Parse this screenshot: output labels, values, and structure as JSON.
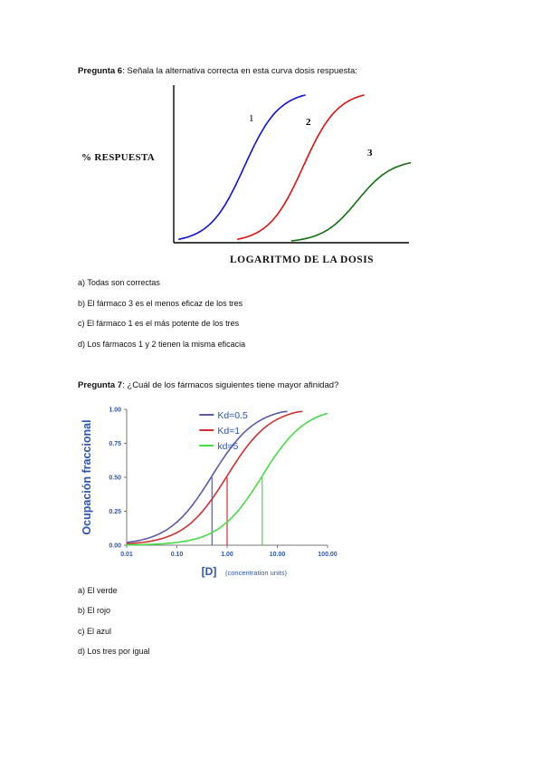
{
  "q6": {
    "label": "Pregunta 6",
    "text": ": Señala la alternativa correcta en esta curva dosis respuesta:",
    "options": [
      "a) Todas son correctas",
      "b) El fármaco 3 es el menos eficaz de los tres",
      "c) El fármaco 1 es el más potente de los tres",
      "d) Los fármacos 1 y 2 tienen la misma eficacia"
    ]
  },
  "q7": {
    "label": "Pregunta 7",
    "text": ": ¿Cuál de los fármacos siguientes tiene mayor afinidad?",
    "options": [
      "a) El verde",
      "b) El rojo",
      "c) El azul",
      "d) Los tres por igual"
    ]
  },
  "colors": {
    "blue": "#1010e0",
    "red": "#e01010",
    "green": "#107010",
    "kd_blue": "#5a5aa8",
    "kd_red": "#d03030",
    "kd_green": "#44dd44",
    "axis_blue": "#2b55b8"
  },
  "chart_data": [
    {
      "type": "line",
      "title": "",
      "xlabel": "LOGARITMO DE LA DOSIS",
      "ylabel": "% RESPUESTA",
      "series": [
        {
          "name": "1",
          "color": "#1010e0",
          "ec50": 3.0,
          "emax": 1.0
        },
        {
          "name": "2",
          "color": "#e01010",
          "ec50": 5.5,
          "emax": 1.0
        },
        {
          "name": "3",
          "color": "#107010",
          "ec50": 7.8,
          "emax": 0.55
        }
      ],
      "xlim": [
        0,
        10
      ],
      "ylim": [
        0,
        1
      ]
    },
    {
      "type": "line",
      "title": "",
      "xlabel": "[D]",
      "xlabel_units": "(concentration units)",
      "ylabel": "Ocupación fraccional",
      "x_scale": "log",
      "xlim": [
        0.01,
        100
      ],
      "ylim": [
        0,
        1
      ],
      "x_ticks": [
        "0.01",
        "0.10",
        "1.00",
        "10.00",
        "100.00"
      ],
      "y_ticks": [
        "0.00",
        "0.25",
        "0.50",
        "0.75",
        "1.00"
      ],
      "series": [
        {
          "name": "Kd=0.5",
          "kd": 0.5,
          "color": "#5a5aa8"
        },
        {
          "name": "Kd=1",
          "kd": 1,
          "color": "#d03030"
        },
        {
          "name": "kd=5",
          "kd": 5,
          "color": "#44dd44"
        }
      ],
      "legend": "top-left"
    }
  ]
}
